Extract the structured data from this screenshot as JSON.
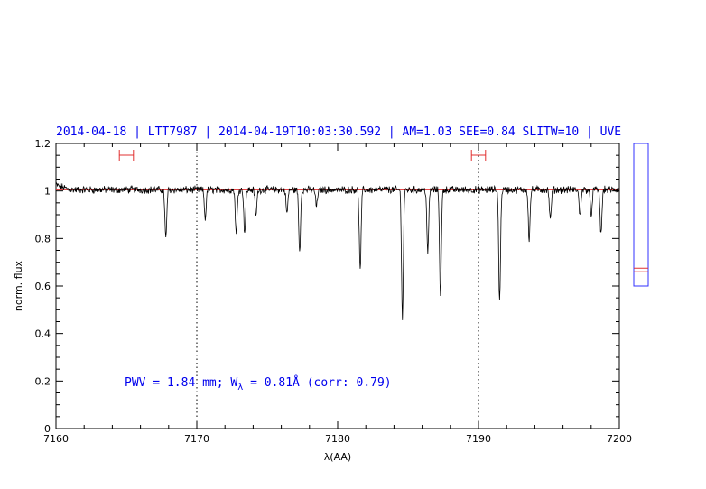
{
  "chart_data": {
    "type": "line",
    "title": "2014-04-18 | LTT7987 | 2014-04-19T10:03:30.592 | AM=1.03 SEE=0.84 SLITW=10 | UVE",
    "xlabel": "λ(AA)",
    "ylabel": "norm. flux",
    "xlim": [
      7160,
      7200
    ],
    "ylim": [
      0,
      1.2
    ],
    "x_ticks": [
      7160,
      7170,
      7180,
      7190,
      7200
    ],
    "y_ticks": [
      0,
      0.2,
      0.4,
      0.6,
      0.8,
      1,
      1.2
    ],
    "vertical_reference_lines": [
      7170,
      7190
    ],
    "continuum_level": 1.005,
    "continuum_intervals": [
      [
        7164.5,
        7165.5
      ],
      [
        7189.5,
        7190.5
      ]
    ],
    "annotation": {
      "prefix": "PWV = 1.84 mm; W",
      "subscript": "λ",
      "suffix": " = 0.81Å (corr: 0.79)"
    },
    "absorption_lines": [
      {
        "x": 7167.8,
        "depth": 0.21
      },
      {
        "x": 7170.6,
        "depth": 0.12
      },
      {
        "x": 7172.8,
        "depth": 0.19
      },
      {
        "x": 7173.4,
        "depth": 0.18
      },
      {
        "x": 7174.2,
        "depth": 0.11
      },
      {
        "x": 7176.4,
        "depth": 0.1
      },
      {
        "x": 7177.3,
        "depth": 0.26
      },
      {
        "x": 7178.5,
        "depth": 0.07
      },
      {
        "x": 7181.6,
        "depth": 0.34
      },
      {
        "x": 7184.6,
        "depth": 0.54
      },
      {
        "x": 7186.4,
        "depth": 0.27
      },
      {
        "x": 7187.3,
        "depth": 0.45
      },
      {
        "x": 7191.5,
        "depth": 0.47
      },
      {
        "x": 7193.6,
        "depth": 0.21
      },
      {
        "x": 7195.1,
        "depth": 0.13
      },
      {
        "x": 7197.2,
        "depth": 0.11
      },
      {
        "x": 7198.0,
        "depth": 0.11
      },
      {
        "x": 7198.7,
        "depth": 0.19
      }
    ],
    "side_panel": {
      "ylim": [
        0,
        1.2
      ],
      "box_range": [
        0.6,
        1.2
      ],
      "marker_values": [
        0.66,
        0.675
      ]
    }
  }
}
